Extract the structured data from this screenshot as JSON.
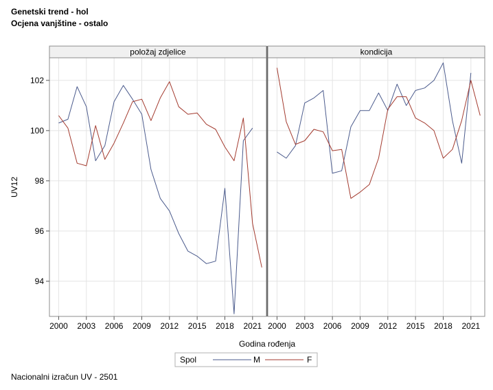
{
  "header": {
    "title": "Genetski trend - hol",
    "subtitle": "Ocjena vanjštine - ostalo"
  },
  "footer": {
    "note": "Nacionalni izračun UV - 2501"
  },
  "chart_data": {
    "type": "line",
    "ylabel": "UV12",
    "xlabel": "Godina rođenja",
    "ylim": [
      92.6,
      102.9
    ],
    "yticks": [
      94,
      96,
      98,
      100,
      102
    ],
    "xlim": [
      1999,
      2022.5
    ],
    "xticks": [
      2000,
      2003,
      2006,
      2009,
      2012,
      2015,
      2018,
      2021
    ],
    "grid": true,
    "legend": {
      "title": "Spol",
      "placement": "bottom",
      "entries": [
        {
          "label": "M",
          "color": "#4a5a8c"
        },
        {
          "label": "F",
          "color": "#a33a2e"
        }
      ]
    },
    "panels": [
      {
        "label": "položaj zdjelice",
        "x": [
          2000,
          2001,
          2002,
          2003,
          2004,
          2005,
          2006,
          2007,
          2008,
          2009,
          2010,
          2011,
          2012,
          2013,
          2014,
          2015,
          2016,
          2017,
          2018,
          2019,
          2020,
          2021,
          2022
        ],
        "series": [
          {
            "name": "M",
            "values": [
              100.3,
              100.45,
              101.75,
              100.95,
              98.8,
              99.4,
              101.15,
              101.8,
              101.25,
              100.65,
              98.45,
              97.3,
              96.8,
              95.9,
              95.2,
              95.0,
              94.7,
              94.8,
              97.7,
              92.7,
              99.6,
              100.1,
              null
            ]
          },
          {
            "name": "F",
            "values": [
              100.6,
              100.1,
              98.7,
              98.6,
              100.2,
              98.85,
              99.5,
              100.3,
              101.15,
              101.25,
              100.4,
              101.3,
              101.95,
              100.95,
              100.65,
              100.7,
              100.25,
              100.05,
              99.35,
              98.8,
              100.5,
              96.3,
              94.55
            ]
          }
        ]
      },
      {
        "label": "kondicija",
        "x": [
          2000,
          2001,
          2002,
          2003,
          2004,
          2005,
          2006,
          2007,
          2008,
          2009,
          2010,
          2011,
          2012,
          2013,
          2014,
          2015,
          2016,
          2017,
          2018,
          2019,
          2020,
          2021,
          2022
        ],
        "series": [
          {
            "name": "M",
            "values": [
              99.15,
              98.9,
              99.4,
              101.1,
              101.3,
              101.6,
              98.3,
              98.4,
              100.15,
              100.8,
              100.8,
              101.5,
              100.8,
              101.85,
              101.0,
              101.6,
              101.7,
              102.0,
              102.7,
              100.4,
              98.7,
              102.3,
              null
            ]
          },
          {
            "name": "F",
            "values": [
              102.5,
              100.35,
              99.45,
              99.6,
              100.05,
              99.95,
              99.2,
              99.25,
              97.3,
              97.55,
              97.85,
              98.9,
              100.85,
              101.35,
              101.35,
              100.5,
              100.3,
              100.0,
              98.9,
              99.25,
              100.4,
              102.0,
              100.6
            ]
          }
        ]
      }
    ]
  }
}
